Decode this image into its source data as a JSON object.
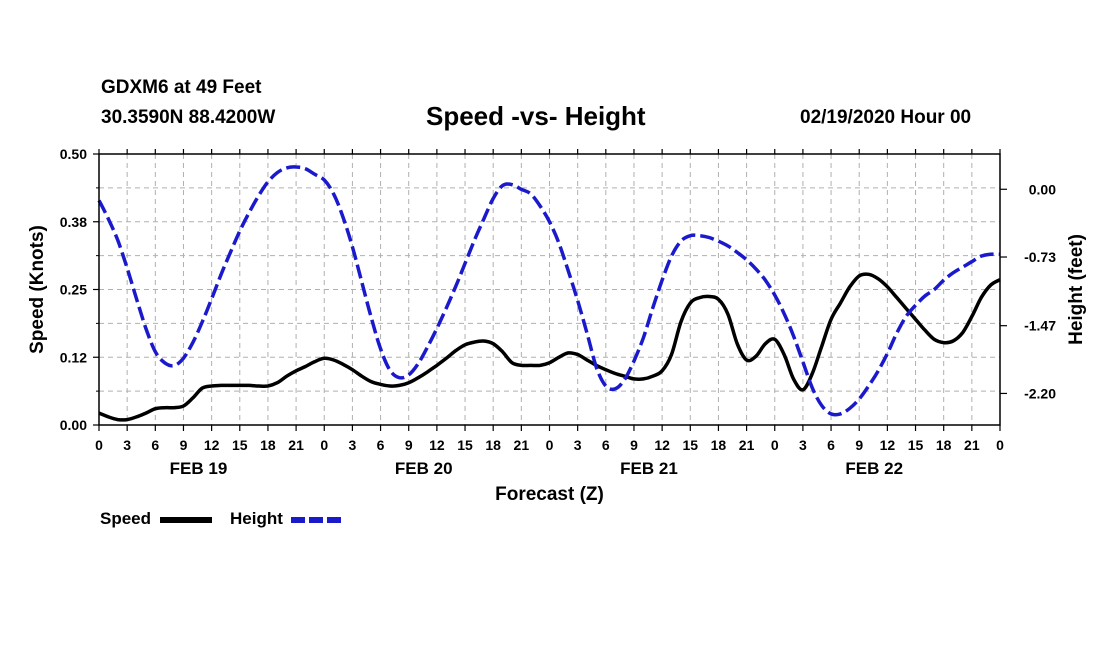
{
  "header": {
    "station": "GDXM6 at 49 Feet",
    "coords": "30.3590N 88.4200W",
    "title": "Speed -vs- Height",
    "datetime": "02/19/2020 Hour 00"
  },
  "legend": {
    "speed_label": "Speed",
    "height_label": "Height"
  },
  "colors": {
    "speed": "#000000",
    "height": "#1a1acc",
    "grid": "#b0b0b0"
  },
  "chart_data": {
    "type": "line",
    "title": "Speed -vs- Height",
    "xlabel": "Forecast (Z)",
    "ylabel": "Speed (Knots)",
    "y2label": "Height (feet)",
    "xlim": [
      0,
      96
    ],
    "ylim": [
      0,
      0.5
    ],
    "y2lim": [
      -2.54,
      0.38
    ],
    "grid": true,
    "x_ticks": [
      0,
      3,
      6,
      9,
      12,
      15,
      18,
      21,
      24,
      27,
      30,
      33,
      36,
      39,
      42,
      45,
      48,
      51,
      54,
      57,
      60,
      63,
      66,
      69,
      72,
      75,
      78,
      81,
      84,
      87,
      90,
      93,
      96
    ],
    "x_tick_labels": [
      "0",
      "3",
      "6",
      "9",
      "12",
      "15",
      "18",
      "21",
      "0",
      "3",
      "6",
      "9",
      "12",
      "15",
      "18",
      "21",
      "0",
      "3",
      "6",
      "9",
      "12",
      "15",
      "18",
      "21",
      "0",
      "3",
      "6",
      "9",
      "12",
      "15",
      "18",
      "21",
      "0"
    ],
    "y_ticks": [
      0.0,
      0.125,
      0.25,
      0.375,
      0.5
    ],
    "y_tick_labels": [
      "0.00",
      "0.12",
      "0.25",
      "0.38",
      "0.50"
    ],
    "y2_ticks": [
      0.0,
      -0.73,
      -1.47,
      -2.2
    ],
    "y2_tick_labels": [
      "0.00",
      "-0.73",
      "-1.47",
      "-2.20"
    ],
    "day_labels": [
      {
        "x": 9,
        "label": "FEB 19"
      },
      {
        "x": 33,
        "label": "FEB 20"
      },
      {
        "x": 57,
        "label": "FEB 21"
      },
      {
        "x": 81,
        "label": "FEB 22"
      }
    ],
    "series": [
      {
        "name": "Speed",
        "axis": "left",
        "style": "solid",
        "x": [
          0,
          1,
          2,
          3,
          4,
          5,
          6,
          7,
          8,
          9,
          10,
          11,
          12,
          13,
          14,
          15,
          16,
          17,
          18,
          19,
          20,
          21,
          22,
          23,
          24,
          25,
          26,
          27,
          28,
          29,
          30,
          31,
          32,
          33,
          34,
          35,
          36,
          37,
          38,
          39,
          40,
          41,
          42,
          43,
          44,
          45,
          46,
          47,
          48,
          49,
          50,
          51,
          52,
          53,
          54,
          55,
          56,
          57,
          58,
          59,
          60,
          61,
          62,
          63,
          64,
          65,
          66,
          67,
          68,
          69,
          70,
          71,
          72,
          73,
          74,
          75,
          76,
          77,
          78,
          79,
          80,
          81,
          82,
          83,
          84,
          85,
          86,
          87,
          88,
          89,
          90,
          91,
          92,
          93,
          94,
          95,
          96
        ],
        "values": [
          0.022,
          0.015,
          0.01,
          0.01,
          0.015,
          0.022,
          0.03,
          0.032,
          0.032,
          0.035,
          0.05,
          0.068,
          0.072,
          0.073,
          0.073,
          0.073,
          0.073,
          0.072,
          0.072,
          0.078,
          0.09,
          0.1,
          0.108,
          0.117,
          0.123,
          0.12,
          0.112,
          0.102,
          0.09,
          0.08,
          0.075,
          0.072,
          0.073,
          0.078,
          0.087,
          0.098,
          0.11,
          0.123,
          0.137,
          0.148,
          0.153,
          0.155,
          0.15,
          0.135,
          0.115,
          0.11,
          0.11,
          0.11,
          0.115,
          0.125,
          0.133,
          0.13,
          0.12,
          0.11,
          0.102,
          0.095,
          0.09,
          0.085,
          0.085,
          0.09,
          0.1,
          0.13,
          0.19,
          0.225,
          0.235,
          0.237,
          0.232,
          0.205,
          0.15,
          0.12,
          0.127,
          0.15,
          0.158,
          0.13,
          0.085,
          0.065,
          0.095,
          0.145,
          0.195,
          0.225,
          0.255,
          0.275,
          0.278,
          0.27,
          0.255,
          0.235,
          0.215,
          0.195,
          0.175,
          0.158,
          0.152,
          0.155,
          0.17,
          0.2,
          0.235,
          0.258,
          0.268
        ]
      },
      {
        "name": "Height",
        "axis": "right",
        "style": "dashed",
        "x": [
          0,
          1,
          2,
          3,
          4,
          5,
          6,
          7,
          8,
          9,
          10,
          11,
          12,
          13,
          14,
          15,
          16,
          17,
          18,
          19,
          20,
          21,
          22,
          23,
          24,
          25,
          26,
          27,
          28,
          29,
          30,
          31,
          32,
          33,
          34,
          35,
          36,
          37,
          38,
          39,
          40,
          41,
          42,
          43,
          44,
          45,
          46,
          47,
          48,
          49,
          50,
          51,
          52,
          53,
          54,
          55,
          56,
          57,
          58,
          59,
          60,
          61,
          62,
          63,
          64,
          65,
          66,
          67,
          68,
          69,
          70,
          71,
          72,
          73,
          74,
          75,
          76,
          77,
          78,
          79,
          80,
          81,
          82,
          83,
          84,
          85,
          86,
          87,
          88,
          89,
          90,
          91,
          92,
          93,
          94,
          95,
          96
        ],
        "values": [
          -0.12,
          -0.32,
          -0.55,
          -0.85,
          -1.18,
          -1.5,
          -1.75,
          -1.87,
          -1.9,
          -1.82,
          -1.65,
          -1.43,
          -1.18,
          -0.92,
          -0.68,
          -0.45,
          -0.25,
          -0.07,
          0.08,
          0.18,
          0.23,
          0.24,
          0.22,
          0.16,
          0.1,
          -0.05,
          -0.3,
          -0.62,
          -1.0,
          -1.38,
          -1.72,
          -1.95,
          -2.03,
          -2.0,
          -1.88,
          -1.7,
          -1.5,
          -1.28,
          -1.05,
          -0.8,
          -0.55,
          -0.32,
          -0.1,
          0.04,
          0.05,
          0.0,
          -0.05,
          -0.18,
          -0.35,
          -0.58,
          -0.88,
          -1.2,
          -1.55,
          -1.92,
          -2.12,
          -2.15,
          -2.05,
          -1.85,
          -1.6,
          -1.28,
          -0.98,
          -0.72,
          -0.56,
          -0.5,
          -0.5,
          -0.52,
          -0.56,
          -0.61,
          -0.68,
          -0.76,
          -0.86,
          -0.98,
          -1.14,
          -1.34,
          -1.58,
          -1.86,
          -2.14,
          -2.33,
          -2.42,
          -2.42,
          -2.36,
          -2.26,
          -2.12,
          -1.96,
          -1.77,
          -1.55,
          -1.37,
          -1.25,
          -1.15,
          -1.08,
          -0.98,
          -0.9,
          -0.84,
          -0.78,
          -0.72,
          -0.7,
          -0.7
        ]
      }
    ]
  }
}
